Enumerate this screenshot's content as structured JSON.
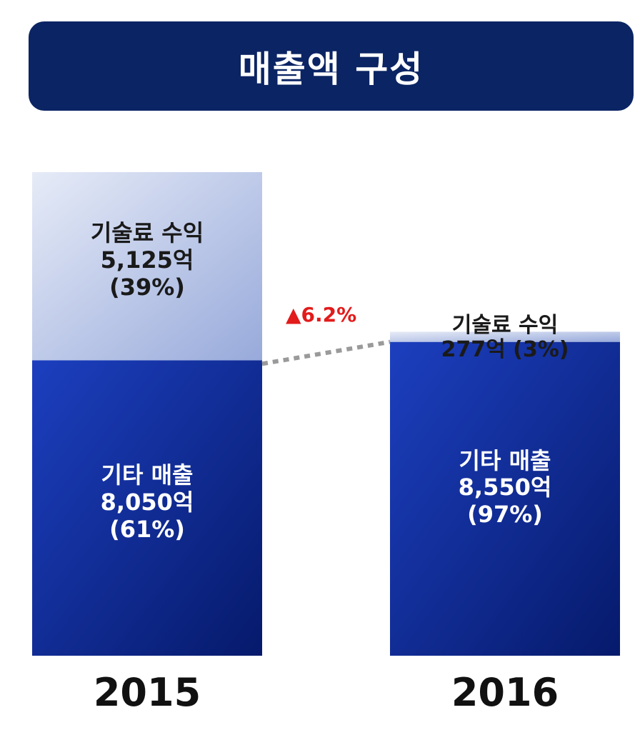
{
  "title": "매출액 구성",
  "growth": {
    "arrow": "▲",
    "value": "6.2%",
    "color": "#e21b1b"
  },
  "colors": {
    "banner": "#0b2463",
    "top_segment_light": "#e6ebf7",
    "top_segment_dark": "#98aadb",
    "bottom_segment_light": "#1c3fbf",
    "bottom_segment_dark": "#061a6b",
    "connector": "#9a9a9a"
  },
  "chart_data": {
    "type": "bar",
    "stacked": true,
    "categories": [
      "2015",
      "2016"
    ],
    "series": [
      {
        "name": "기타 매출",
        "values": [
          8050,
          8550
        ],
        "labels": [
          {
            "name": "기타 매출",
            "amount": "8,050억",
            "percent": "(61%)"
          },
          {
            "name": "기타 매출",
            "amount": "8,550억",
            "percent": "(97%)"
          }
        ]
      },
      {
        "name": "기술료 수익",
        "values": [
          5125,
          277
        ],
        "labels": [
          {
            "name": "기술료 수익",
            "amount": "5,125억",
            "percent": "(39%)"
          },
          {
            "name": "기술료 수익",
            "amount": "277억",
            "percent": "(3%)"
          }
        ]
      }
    ],
    "annotations": [
      "▲6.2%"
    ]
  }
}
